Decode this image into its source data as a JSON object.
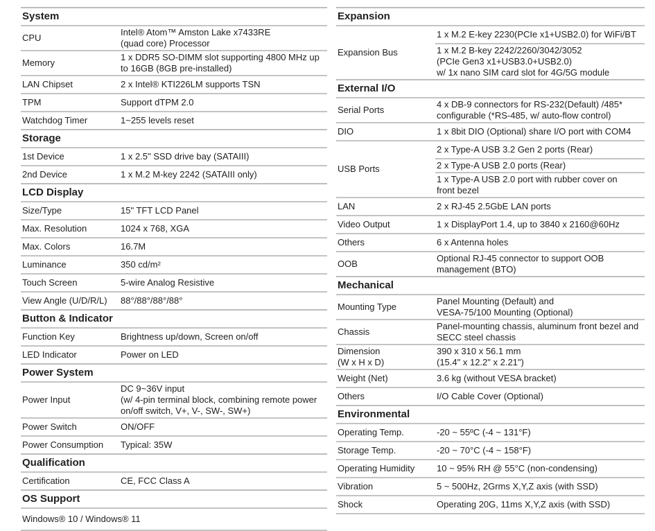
{
  "left": [
    {
      "title": "System",
      "rows": [
        {
          "label": [
            "CPU"
          ],
          "values": [
            [
              "Intel® Atom™ Amston Lake x7433RE",
              "(quad core) Processor"
            ]
          ]
        },
        {
          "label": [
            "Memory"
          ],
          "values": [
            [
              "1 x DDR5 SO-DIMM slot supporting 4800 MHz up",
              "to 16GB (8GB pre-installed)"
            ]
          ]
        },
        {
          "label": [
            "LAN Chipset"
          ],
          "values": [
            [
              "2 x Intel® KTI226LM supports TSN"
            ]
          ]
        },
        {
          "label": [
            "TPM"
          ],
          "values": [
            [
              "Support dTPM 2.0"
            ]
          ]
        },
        {
          "label": [
            "Watchdog Timer"
          ],
          "values": [
            [
              "1~255 levels reset"
            ]
          ]
        }
      ]
    },
    {
      "title": "Storage",
      "rows": [
        {
          "label": [
            "1st Device"
          ],
          "values": [
            [
              "1 x 2.5\" SSD drive bay (SATAIII)"
            ]
          ]
        },
        {
          "label": [
            "2nd Device"
          ],
          "values": [
            [
              "1 x M.2 M-key 2242 (SATAIII only)"
            ]
          ]
        }
      ]
    },
    {
      "title": "LCD Display",
      "rows": [
        {
          "label": [
            "Size/Type"
          ],
          "values": [
            [
              "15\" TFT LCD Panel"
            ]
          ]
        },
        {
          "label": [
            "Max. Resolution"
          ],
          "values": [
            [
              "1024 x 768, XGA"
            ]
          ]
        },
        {
          "label": [
            "Max. Colors"
          ],
          "values": [
            [
              "16.7M"
            ]
          ]
        },
        {
          "label": [
            "Luminance"
          ],
          "values": [
            [
              "350 cd/m²"
            ]
          ]
        },
        {
          "label": [
            "Touch Screen"
          ],
          "values": [
            [
              "5-wire Analog Resistive"
            ]
          ]
        },
        {
          "label": [
            "View Angle (U/D/R/L)"
          ],
          "values": [
            [
              "88°/88°/88°/88°"
            ]
          ]
        }
      ]
    },
    {
      "title": "Button & Indicator",
      "rows": [
        {
          "label": [
            "Function Key"
          ],
          "values": [
            [
              "Brightness up/down, Screen on/off"
            ]
          ]
        },
        {
          "label": [
            "LED Indicator"
          ],
          "values": [
            [
              "Power on LED"
            ]
          ]
        }
      ]
    },
    {
      "title": "Power System",
      "rows": [
        {
          "label": [
            "Power Input"
          ],
          "values": [
            [
              "DC 9~36V input",
              "(w/ 4-pin terminal block, combining remote power",
              "on/off switch, V+, V-, SW-, SW+)"
            ]
          ]
        },
        {
          "label": [
            "Power Switch"
          ],
          "values": [
            [
              "ON/OFF"
            ]
          ]
        },
        {
          "label": [
            "Power Consumption"
          ],
          "values": [
            [
              "Typical: 35W"
            ]
          ]
        }
      ]
    },
    {
      "title": "Qualification",
      "rows": [
        {
          "label": [
            "Certification"
          ],
          "values": [
            [
              "CE, FCC Class A"
            ]
          ]
        }
      ]
    },
    {
      "title": "OS Support",
      "rows": [
        {
          "label": [
            "Windows® 10 / Windows® 11"
          ],
          "values": []
        }
      ]
    }
  ],
  "right": [
    {
      "title": "Expansion",
      "rows": [
        {
          "label": [
            "Expansion Bus"
          ],
          "values": [
            [
              "1 x M.2 E-key 2230(PCIe x1+USB2.0) for WiFi/BT"
            ],
            [
              "1 x M.2 B-key 2242/2260/3042/3052",
              "(PCIe Gen3 x1+USB3.0+USB2.0)",
              "w/ 1x nano SIM card slot for 4G/5G module"
            ]
          ]
        }
      ]
    },
    {
      "title": "External I/O",
      "rows": [
        {
          "label": [
            "Serial Ports"
          ],
          "values": [
            [
              "4 x DB-9 connectors for RS-232(Default) /485*",
              "configurable (*RS-485, w/ auto-flow control)"
            ]
          ]
        },
        {
          "label": [
            "DIO"
          ],
          "values": [
            [
              "1 x 8bit DIO (Optional) share I/O port with COM4"
            ]
          ]
        },
        {
          "label": [
            "USB Ports"
          ],
          "values": [
            [
              "2 x Type-A USB 3.2 Gen 2 ports (Rear)"
            ],
            [
              "2 x Type-A USB 2.0 ports (Rear)"
            ],
            [
              "1 x Type-A USB 2.0 port with rubber cover on",
              "front bezel"
            ]
          ]
        },
        {
          "label": [
            "LAN"
          ],
          "values": [
            [
              "2 x RJ-45 2.5GbE LAN ports"
            ]
          ]
        },
        {
          "label": [
            "Video Output"
          ],
          "values": [
            [
              "1 x DisplayPort 1.4, up to 3840 x 2160@60Hz"
            ]
          ]
        },
        {
          "label": [
            "Others"
          ],
          "values": [
            [
              "6 x Antenna holes"
            ]
          ]
        },
        {
          "label": [
            "OOB"
          ],
          "values": [
            [
              "Optional RJ-45 connector to support OOB",
              "management (BTO)"
            ]
          ]
        }
      ]
    },
    {
      "title": "Mechanical",
      "rows": [
        {
          "label": [
            "Mounting Type"
          ],
          "values": [
            [
              "Panel Mounting (Default) and",
              "VESA-75/100 Mounting (Optional)"
            ]
          ]
        },
        {
          "label": [
            "Chassis"
          ],
          "values": [
            [
              "Panel-mounting chassis, aluminum front bezel and",
              "SECC steel chassis"
            ]
          ]
        },
        {
          "label": [
            "Dimension",
            "(W x H x D)"
          ],
          "values": [
            [
              "390 x 310 x 56.1 mm",
              "(15.4\" x 12.2\" x 2.21\")"
            ]
          ]
        },
        {
          "label": [
            "Weight (Net)"
          ],
          "values": [
            [
              "3.6 kg (without VESA bracket)"
            ]
          ]
        },
        {
          "label": [
            "Others"
          ],
          "values": [
            [
              "I/O Cable Cover (Optional)"
            ]
          ]
        }
      ]
    },
    {
      "title": "Environmental",
      "rows": [
        {
          "label": [
            "Operating Temp."
          ],
          "values": [
            [
              "-20 ~ 55ºC (-4 ~ 131°F)"
            ]
          ]
        },
        {
          "label": [
            "Storage Temp."
          ],
          "values": [
            [
              "-20 ~ 70°C (-4 ~ 158°F)"
            ]
          ]
        },
        {
          "label": [
            "Operating Humidity"
          ],
          "values": [
            [
              "10 ~ 95% RH @ 55°C (non-condensing)"
            ]
          ]
        },
        {
          "label": [
            "Vibration"
          ],
          "values": [
            [
              "5 ~ 500Hz, 2Grms X,Y,Z axis (with SSD)"
            ]
          ]
        },
        {
          "label": [
            "Shock"
          ],
          "values": [
            [
              "Operating 20G, 11ms X,Y,Z axis (with SSD)"
            ]
          ]
        }
      ]
    }
  ]
}
